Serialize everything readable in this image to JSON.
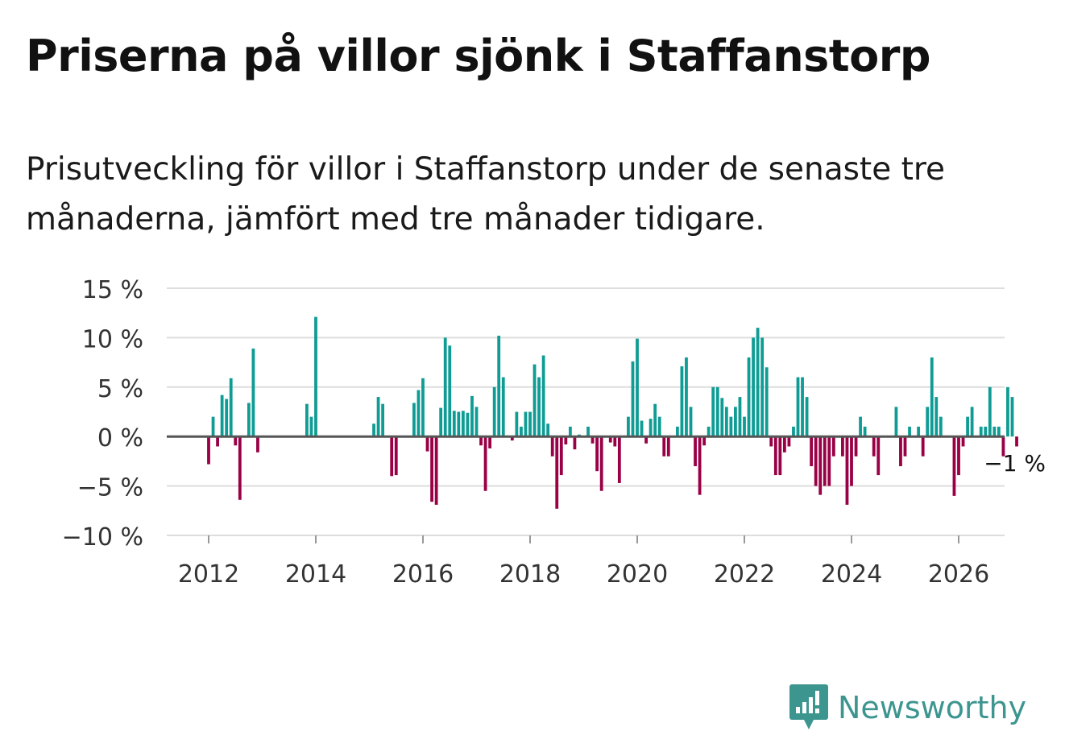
{
  "title": "Priserna på villor sjönk i Staffanstorp",
  "subtitle": "Prisutveckling för villor i Staffanstorp under de senaste tre månaderna, jämfört med tre månader tidigare.",
  "brand": {
    "name": "Newsworthy",
    "logo_icon": "newsworthy-logo-icon"
  },
  "colors": {
    "positive": "#0f9c94",
    "negative": "#990045",
    "grid": "#dddddd",
    "zero": "#555555"
  },
  "chart_data": {
    "type": "bar",
    "title": "Priserna på villor sjönk i Staffanstorp",
    "xlabel": "",
    "ylabel": "",
    "ylim": [
      -10,
      15
    ],
    "yticks": [
      15,
      10,
      5,
      0,
      -5,
      -10
    ],
    "ytick_labels": [
      "15 %",
      "10 %",
      "5 %",
      "0 %",
      "−5 %",
      "−10 %"
    ],
    "xticks": [
      2012,
      2014,
      2016,
      2018,
      2020,
      2022,
      2024,
      2026
    ],
    "xtick_labels": [
      "2012",
      "2014",
      "2016",
      "2018",
      "2020",
      "2022",
      "2024",
      "2026"
    ],
    "x_start": 2012.0,
    "x_step": 0.0833333,
    "last_value_label": "−1 %",
    "values": [
      -2.8,
      2.0,
      -1.0,
      4.2,
      3.8,
      5.9,
      -0.9,
      -6.4,
      0,
      3.4,
      8.9,
      -1.6,
      0,
      0,
      0,
      0,
      0,
      0,
      0,
      0,
      0,
      0,
      3.3,
      2.0,
      12.1,
      0,
      0,
      0,
      0,
      0,
      0,
      0,
      0,
      0,
      0,
      0,
      0,
      1.3,
      4.0,
      3.3,
      0,
      -4.0,
      -3.9,
      0,
      0,
      0,
      3.4,
      4.7,
      5.9,
      -1.5,
      -6.6,
      -6.9,
      2.9,
      10.0,
      9.2,
      2.6,
      2.5,
      2.6,
      2.4,
      4.1,
      3.0,
      -0.9,
      -5.5,
      -1.2,
      5.0,
      10.2,
      6.0,
      0,
      -0.4,
      2.5,
      1.0,
      2.5,
      2.5,
      7.3,
      6.0,
      8.2,
      1.3,
      -2.0,
      -7.3,
      -3.9,
      -0.8,
      1.0,
      -1.3,
      0.2,
      0,
      1.0,
      -0.7,
      -3.5,
      -5.5,
      0,
      -0.6,
      -1.0,
      -4.7,
      0,
      2.0,
      7.6,
      9.9,
      1.6,
      -0.7,
      1.8,
      3.3,
      2.0,
      -2.0,
      -2.0,
      0,
      1.0,
      7.1,
      8.0,
      3.0,
      -3.0,
      -5.9,
      -0.9,
      1.0,
      5.0,
      5.0,
      3.9,
      3.0,
      2.0,
      3.0,
      4.0,
      2.0,
      8.0,
      10.0,
      11.0,
      10.0,
      7.0,
      -1.0,
      -3.9,
      -3.9,
      -1.6,
      -1.0,
      1.0,
      6.0,
      6.0,
      4.0,
      -3.0,
      -5.0,
      -5.9,
      -5.0,
      -5.0,
      -2.0,
      0,
      -2.0,
      -6.9,
      -5.0,
      -2.0,
      2.0,
      1.0,
      0,
      -2.0,
      -3.9,
      0,
      0,
      0,
      3.0,
      -3.0,
      -2.0,
      1.0,
      0,
      1.0,
      -2.0,
      3.0,
      8.0,
      4.0,
      2.0,
      0,
      0,
      -6.0,
      -3.9,
      -1.0,
      2.0,
      3.0,
      0,
      1.0,
      1.0,
      5.0,
      1.0,
      1.0,
      -2.0,
      5.0,
      4.0,
      -1.0
    ]
  }
}
